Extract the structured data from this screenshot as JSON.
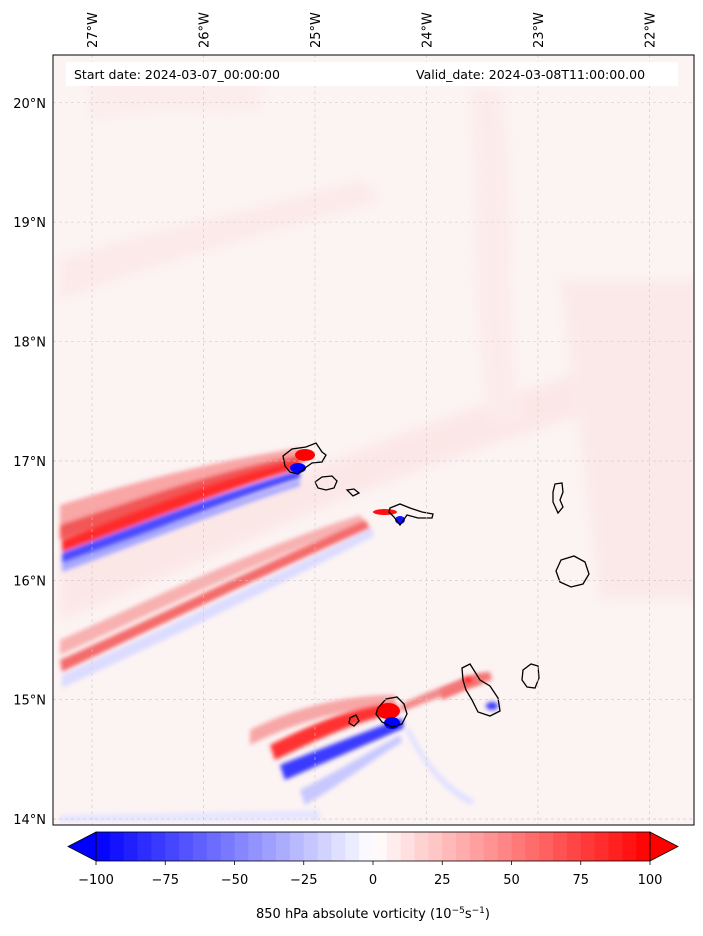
{
  "header": {
    "start_date": "Start date: 2024-03-07_00:00:00",
    "valid_date": "Valid_date: 2024-03-08T11:00:00.00"
  },
  "map": {
    "lon_ticks": [
      "27°W",
      "26°W",
      "25°W",
      "24°W",
      "23°W",
      "22°W"
    ],
    "lat_ticks": [
      "20°N",
      "19°N",
      "18°N",
      "17°N",
      "16°N",
      "15°N",
      "14°N"
    ],
    "lon_range": [
      -27.35,
      -21.6
    ],
    "lat_range": [
      13.95,
      20.4
    ],
    "gridlines": true
  },
  "colorbar": {
    "ticks": [
      "−100",
      "−75",
      "−50",
      "−25",
      "0",
      "25",
      "50",
      "75",
      "100"
    ],
    "tick_values": [
      -100,
      -75,
      -50,
      -25,
      0,
      25,
      50,
      75,
      100
    ],
    "range": [
      -100,
      100
    ],
    "extend": "both",
    "colormap": "bwr",
    "low_color": "#0000ff",
    "mid_color": "#ffffff",
    "high_color": "#ff0000",
    "label_text": "850 hPa absolute vorticity (10",
    "label_sup1": "−5",
    "label_mid": "s",
    "label_sup2": "−1",
    "label_end": ")"
  }
}
